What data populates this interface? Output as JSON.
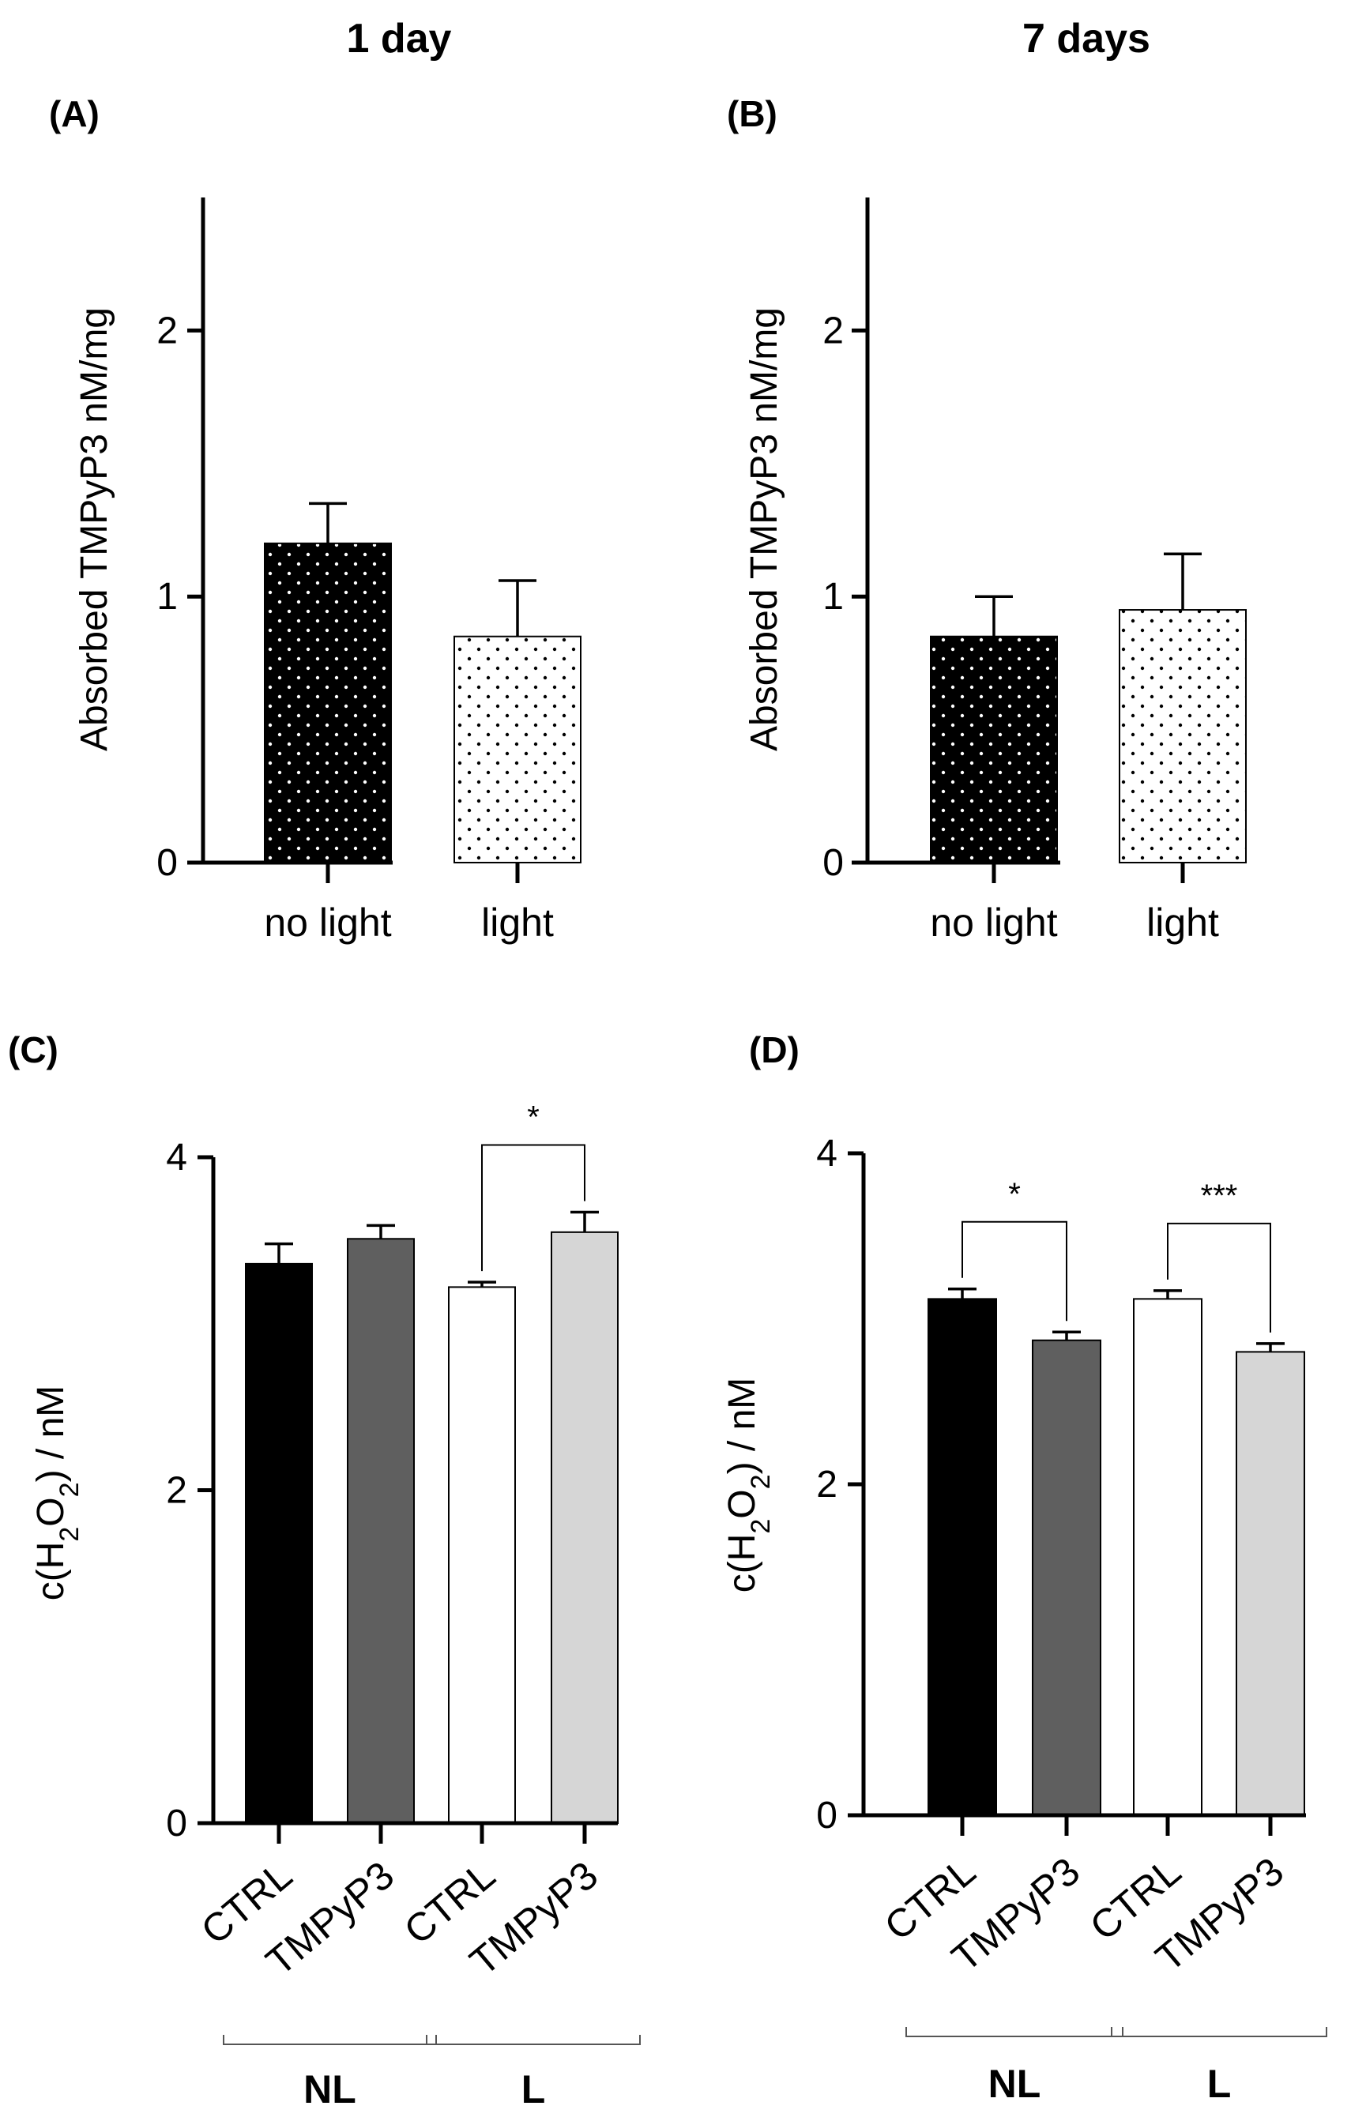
{
  "figure": {
    "column_titles": [
      "1 day",
      "7 days"
    ]
  },
  "chart_data": [
    {
      "panel": "(A)",
      "type": "bar",
      "column_title": "1 day",
      "categories": [
        "no light",
        "light"
      ],
      "values": [
        1.2,
        0.85
      ],
      "errors": [
        0.15,
        0.21
      ],
      "fills": [
        "dark-dotted",
        "light-dotted"
      ],
      "ylabel": "Absorbed TMPyP3 nM/mg",
      "ylim": [
        0,
        2.5
      ],
      "yticks": [
        0,
        1,
        2
      ],
      "groups": [],
      "significance": []
    },
    {
      "panel": "(B)",
      "type": "bar",
      "column_title": "7 days",
      "categories": [
        "no light",
        "light"
      ],
      "values": [
        0.85,
        0.95
      ],
      "errors": [
        0.15,
        0.21
      ],
      "fills": [
        "dark-dotted",
        "light-dotted"
      ],
      "ylabel": "Absorbed TMPyP3 nM/mg",
      "ylim": [
        0,
        2.5
      ],
      "yticks": [
        0,
        1,
        2
      ],
      "groups": [],
      "significance": []
    },
    {
      "panel": "(C)",
      "type": "bar",
      "categories": [
        "CTRL",
        "TMPyP3",
        "CTRL",
        "TMPyP3"
      ],
      "values": [
        3.36,
        3.51,
        3.22,
        3.55
      ],
      "errors": [
        0.12,
        0.08,
        0.03,
        0.12
      ],
      "fills": [
        "#000000",
        "#5f5f5f",
        "#ffffff",
        "#d6d6d6"
      ],
      "ylabel_prefix": "c(H",
      "ylabel_sub1": "2",
      "ylabel_mid": "O",
      "ylabel_sub2": "2",
      "ylabel_suffix": ") / nM",
      "ylim": [
        0,
        4
      ],
      "yticks": [
        0,
        2,
        4
      ],
      "groups": [
        {
          "label": "NL",
          "from": 0,
          "to": 1
        },
        {
          "label": "L",
          "from": 2,
          "to": 3
        }
      ],
      "significance": [
        {
          "from": 2,
          "to": 3,
          "label": "*"
        }
      ]
    },
    {
      "panel": "(D)",
      "type": "bar",
      "categories": [
        "CTRL",
        "TMPyP3",
        "CTRL",
        "TMPyP3"
      ],
      "values": [
        3.12,
        2.87,
        3.12,
        2.8
      ],
      "errors": [
        0.06,
        0.05,
        0.05,
        0.05
      ],
      "fills": [
        "#000000",
        "#5f5f5f",
        "#ffffff",
        "#d6d6d6"
      ],
      "ylabel_prefix": "c(H",
      "ylabel_sub1": "2",
      "ylabel_mid": "O",
      "ylabel_sub2": "2",
      "ylabel_suffix": ") / nM",
      "ylim": [
        0,
        4
      ],
      "yticks": [
        0,
        2,
        4
      ],
      "groups": [
        {
          "label": "NL",
          "from": 0,
          "to": 1
        },
        {
          "label": "L",
          "from": 2,
          "to": 3
        }
      ],
      "significance": [
        {
          "from": 0,
          "to": 1,
          "label": "*"
        },
        {
          "from": 2,
          "to": 3,
          "label": "***"
        }
      ]
    }
  ]
}
